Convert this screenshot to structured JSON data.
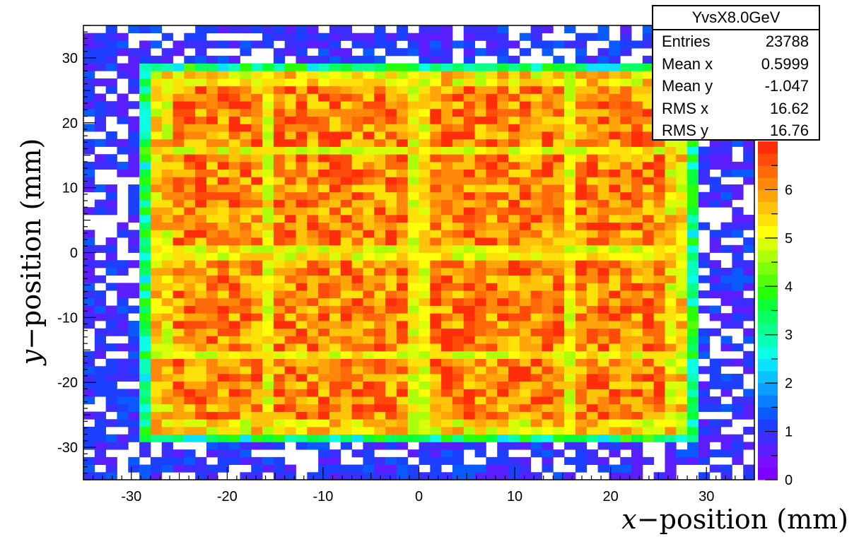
{
  "chart_data": {
    "type": "heatmap",
    "title": "",
    "xlabel_var": "x",
    "xlabel_text": "position (mm)",
    "ylabel_var": "y",
    "ylabel_text": "position (mm)",
    "xlim": [
      -35,
      35
    ],
    "ylim": [
      -35,
      35
    ],
    "x_ticks": [
      -30,
      -20,
      -10,
      0,
      10,
      20,
      30
    ],
    "y_ticks": [
      -30,
      -20,
      -10,
      0,
      10,
      20,
      30
    ],
    "bins": [
      60,
      60
    ],
    "zlim": [
      0,
      7
    ],
    "z_ticks": [
      0,
      1,
      2,
      3,
      4,
      5,
      6
    ],
    "palette": [
      "#7f00ff",
      "#7a10ff",
      "#5a1eff",
      "#3c2eff",
      "#1d3fff",
      "#0a5aff",
      "#0a7cff",
      "#0a9eff",
      "#0ac0ff",
      "#0ae2ff",
      "#0affe4",
      "#0affb9",
      "#0aff8d",
      "#0aff62",
      "#0aff36",
      "#2aff0a",
      "#55ff0a",
      "#80ff0a",
      "#abff0a",
      "#d7ff0a",
      "#ffff0a",
      "#ffe10a",
      "#ffc30a",
      "#ffa50a",
      "#ff870a",
      "#ff690a",
      "#ff4b0a",
      "#ff2d0a"
    ],
    "stats": {
      "name": "YvsX8.0GeV",
      "rows": [
        {
          "label": "Entries",
          "value": "23788"
        },
        {
          "label": "Mean x",
          "value": "0.5999"
        },
        {
          "label": "Mean y",
          "value": "-1.047"
        },
        {
          "label": "RMS x",
          "value": "16.62"
        },
        {
          "label": "RMS y",
          "value": "16.76"
        }
      ]
    }
  }
}
